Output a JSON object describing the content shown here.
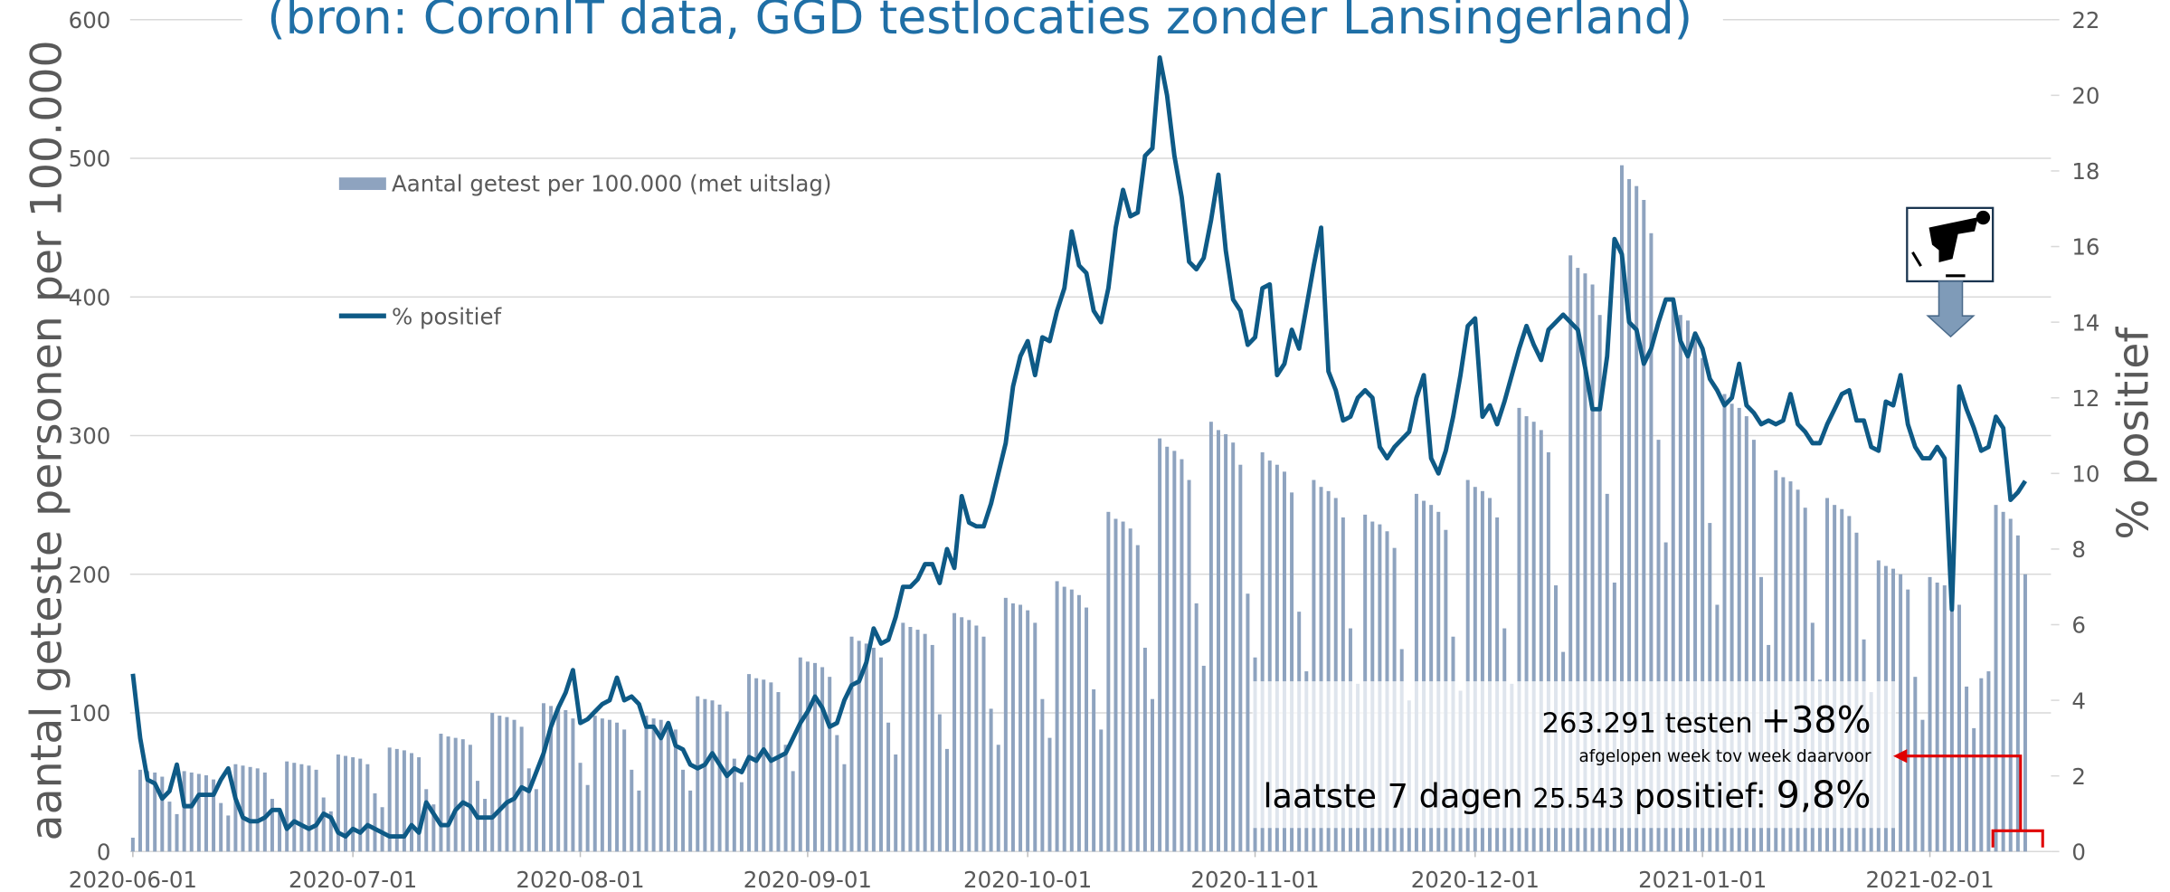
{
  "chart_data": {
    "type": "bar-line",
    "title": "(bron: CoronIT data, GGD testlocaties zonder Lansingerland)",
    "ylabel": "aantal geteste personen per 100.000",
    "y2label": "% positief",
    "legend": "upper left",
    "grid": true,
    "xlim": [
      "2020-06-01",
      "2021-02-16"
    ],
    "xticks": [
      "2020-06-01",
      "2020-07-01",
      "2020-08-01",
      "2020-09-01",
      "2020-10-01",
      "2020-11-01",
      "2020-12-01",
      "2021-01-01",
      "2021-02-01"
    ],
    "ylim": [
      0,
      600
    ],
    "yticks": [
      0,
      100,
      200,
      300,
      400,
      500,
      600
    ],
    "y2lim": [
      0,
      22
    ],
    "y2ticks": [
      0,
      2,
      4,
      6,
      8,
      10,
      12,
      14,
      16,
      18,
      20,
      22
    ],
    "x": [
      "2020-06-01",
      "2020-06-02",
      "2020-06-03",
      "2020-06-04",
      "2020-06-05",
      "2020-06-06",
      "2020-06-07",
      "2020-06-08",
      "2020-06-09",
      "2020-06-10",
      "2020-06-11",
      "2020-06-12",
      "2020-06-13",
      "2020-06-14",
      "2020-06-15",
      "2020-06-16",
      "2020-06-17",
      "2020-06-18",
      "2020-06-19",
      "2020-06-20",
      "2020-06-21",
      "2020-06-22",
      "2020-06-23",
      "2020-06-24",
      "2020-06-25",
      "2020-06-26",
      "2020-06-27",
      "2020-06-28",
      "2020-06-29",
      "2020-06-30",
      "2020-07-01",
      "2020-07-02",
      "2020-07-03",
      "2020-07-04",
      "2020-07-05",
      "2020-07-06",
      "2020-07-07",
      "2020-07-08",
      "2020-07-09",
      "2020-07-10",
      "2020-07-11",
      "2020-07-12",
      "2020-07-13",
      "2020-07-14",
      "2020-07-15",
      "2020-07-16",
      "2020-07-17",
      "2020-07-18",
      "2020-07-19",
      "2020-07-20",
      "2020-07-21",
      "2020-07-22",
      "2020-07-23",
      "2020-07-24",
      "2020-07-25",
      "2020-07-26",
      "2020-07-27",
      "2020-07-28",
      "2020-07-29",
      "2020-07-30",
      "2020-07-31",
      "2020-08-01",
      "2020-08-02",
      "2020-08-03",
      "2020-08-04",
      "2020-08-05",
      "2020-08-06",
      "2020-08-07",
      "2020-08-08",
      "2020-08-09",
      "2020-08-10",
      "2020-08-11",
      "2020-08-12",
      "2020-08-13",
      "2020-08-14",
      "2020-08-15",
      "2020-08-16",
      "2020-08-17",
      "2020-08-18",
      "2020-08-19",
      "2020-08-20",
      "2020-08-21",
      "2020-08-22",
      "2020-08-23",
      "2020-08-24",
      "2020-08-25",
      "2020-08-26",
      "2020-08-27",
      "2020-08-28",
      "2020-08-29",
      "2020-08-30",
      "2020-08-31",
      "2020-09-01",
      "2020-09-02",
      "2020-09-03",
      "2020-09-04",
      "2020-09-05",
      "2020-09-06",
      "2020-09-07",
      "2020-09-08",
      "2020-09-09",
      "2020-09-10",
      "2020-09-11",
      "2020-09-12",
      "2020-09-13",
      "2020-09-14",
      "2020-09-15",
      "2020-09-16",
      "2020-09-17",
      "2020-09-18",
      "2020-09-19",
      "2020-09-20",
      "2020-09-21",
      "2020-09-22",
      "2020-09-23",
      "2020-09-24",
      "2020-09-25",
      "2020-09-26",
      "2020-09-27",
      "2020-09-28",
      "2020-09-29",
      "2020-09-30",
      "2020-10-01",
      "2020-10-02",
      "2020-10-03",
      "2020-10-04",
      "2020-10-05",
      "2020-10-06",
      "2020-10-07",
      "2020-10-08",
      "2020-10-09",
      "2020-10-10",
      "2020-10-11",
      "2020-10-12",
      "2020-10-13",
      "2020-10-14",
      "2020-10-15",
      "2020-10-16",
      "2020-10-17",
      "2020-10-18",
      "2020-10-19",
      "2020-10-20",
      "2020-10-21",
      "2020-10-22",
      "2020-10-23",
      "2020-10-24",
      "2020-10-25",
      "2020-10-26",
      "2020-10-27",
      "2020-10-28",
      "2020-10-29",
      "2020-10-30",
      "2020-10-31",
      "2020-11-01",
      "2020-11-02",
      "2020-11-03",
      "2020-11-04",
      "2020-11-05",
      "2020-11-06",
      "2020-11-07",
      "2020-11-08",
      "2020-11-09",
      "2020-11-10",
      "2020-11-11",
      "2020-11-12",
      "2020-11-13",
      "2020-11-14",
      "2020-11-15",
      "2020-11-16",
      "2020-11-17",
      "2020-11-18",
      "2020-11-19",
      "2020-11-20",
      "2020-11-21",
      "2020-11-22",
      "2020-11-23",
      "2020-11-24",
      "2020-11-25",
      "2020-11-26",
      "2020-11-27",
      "2020-11-28",
      "2020-11-29",
      "2020-11-30",
      "2020-12-01",
      "2020-12-02",
      "2020-12-03",
      "2020-12-04",
      "2020-12-05",
      "2020-12-06",
      "2020-12-07",
      "2020-12-08",
      "2020-12-09",
      "2020-12-10",
      "2020-12-11",
      "2020-12-12",
      "2020-12-13",
      "2020-12-14",
      "2020-12-15",
      "2020-12-16",
      "2020-12-17",
      "2020-12-18",
      "2020-12-19",
      "2020-12-20",
      "2020-12-21",
      "2020-12-22",
      "2020-12-23",
      "2020-12-24",
      "2020-12-25",
      "2020-12-26",
      "2020-12-27",
      "2020-12-28",
      "2020-12-29",
      "2020-12-30",
      "2020-12-31",
      "2021-01-01",
      "2021-01-02",
      "2021-01-03",
      "2021-01-04",
      "2021-01-05",
      "2021-01-06",
      "2021-01-07",
      "2021-01-08",
      "2021-01-09",
      "2021-01-10",
      "2021-01-11",
      "2021-01-12",
      "2021-01-13",
      "2021-01-14",
      "2021-01-15",
      "2021-01-16",
      "2021-01-17",
      "2021-01-18",
      "2021-01-19",
      "2021-01-20",
      "2021-01-21",
      "2021-01-22",
      "2021-01-23",
      "2021-01-24",
      "2021-01-25",
      "2021-01-26",
      "2021-01-27",
      "2021-01-28",
      "2021-01-29",
      "2021-01-30",
      "2021-01-31",
      "2021-02-01",
      "2021-02-02",
      "2021-02-03",
      "2021-02-04",
      "2021-02-05",
      "2021-02-06",
      "2021-02-07",
      "2021-02-08",
      "2021-02-09",
      "2021-02-10",
      "2021-02-11",
      "2021-02-12",
      "2021-02-13",
      "2021-02-14"
    ],
    "series": [
      {
        "name": "Aantal getest per 100.000 (met uitslag)",
        "type": "bar",
        "axis": "y",
        "color": "#8ea3bf",
        "values": [
          10,
          59,
          58,
          57,
          54,
          36,
          27,
          58,
          57,
          56,
          55,
          52,
          35,
          26,
          63,
          62,
          61,
          60,
          57,
          38,
          28,
          65,
          64,
          63,
          62,
          59,
          39,
          29,
          70,
          69,
          68,
          67,
          63,
          42,
          32,
          75,
          74,
          73,
          71,
          68,
          45,
          34,
          85,
          83,
          82,
          81,
          77,
          51,
          38,
          100,
          98,
          97,
          95,
          90,
          60,
          45,
          107,
          105,
          104,
          102,
          96,
          64,
          48,
          98,
          96,
          95,
          93,
          88,
          59,
          44,
          98,
          96,
          95,
          93,
          88,
          59,
          44,
          112,
          110,
          109,
          106,
          101,
          67,
          50,
          128,
          125,
          124,
          122,
          115,
          77,
          58,
          140,
          137,
          136,
          133,
          126,
          84,
          63,
          155,
          152,
          150,
          147,
          140,
          93,
          70,
          165,
          162,
          160,
          157,
          149,
          99,
          74,
          172,
          169,
          167,
          163,
          155,
          103,
          77,
          183,
          179,
          178,
          174,
          165,
          110,
          82,
          195,
          191,
          189,
          185,
          176,
          117,
          88,
          245,
          240,
          238,
          233,
          221,
          147,
          110,
          298,
          292,
          289,
          283,
          268,
          179,
          134,
          310,
          304,
          301,
          295,
          279,
          186,
          140,
          288,
          282,
          279,
          274,
          259,
          173,
          130,
          268,
          263,
          260,
          255,
          241,
          161,
          121,
          243,
          238,
          236,
          231,
          219,
          146,
          109,
          258,
          253,
          250,
          245,
          232,
          155,
          116,
          268,
          263,
          260,
          255,
          241,
          161,
          121,
          320,
          314,
          310,
          304,
          288,
          192,
          144,
          430,
          421,
          417,
          409,
          387,
          258,
          194,
          495,
          485,
          480,
          470,
          446,
          297,
          223,
          395,
          387,
          383,
          375,
          356,
          237,
          178,
          330,
          323,
          320,
          314,
          297,
          198,
          149,
          275,
          270,
          267,
          261,
          248,
          165,
          124,
          255,
          250,
          247,
          242,
          230,
          153,
          115,
          210,
          206,
          204,
          200,
          189,
          126,
          95,
          198,
          194,
          192,
          188,
          178,
          119,
          89,
          125,
          130,
          250,
          245,
          240,
          228,
          200
        ]
      },
      {
        "name": "% positief",
        "type": "line",
        "axis": "y2",
        "color": "#0e5a86",
        "values": [
          4.7,
          3.0,
          1.9,
          1.8,
          1.4,
          1.6,
          2.3,
          1.2,
          1.2,
          1.5,
          1.5,
          1.5,
          1.9,
          2.2,
          1.4,
          0.9,
          0.8,
          0.8,
          0.9,
          1.1,
          1.1,
          0.6,
          0.8,
          0.7,
          0.6,
          0.7,
          1.0,
          0.9,
          0.5,
          0.4,
          0.6,
          0.5,
          0.7,
          0.6,
          0.5,
          0.4,
          0.4,
          0.4,
          0.7,
          0.5,
          1.3,
          1.0,
          0.7,
          0.7,
          1.1,
          1.3,
          1.2,
          0.9,
          0.9,
          0.9,
          1.1,
          1.3,
          1.4,
          1.7,
          1.6,
          2.1,
          2.6,
          3.3,
          3.8,
          4.2,
          4.8,
          3.4,
          3.5,
          3.7,
          3.9,
          4.0,
          4.6,
          4.0,
          4.1,
          3.9,
          3.3,
          3.3,
          3.0,
          3.4,
          2.8,
          2.7,
          2.3,
          2.2,
          2.3,
          2.6,
          2.3,
          2.0,
          2.2,
          2.1,
          2.5,
          2.4,
          2.7,
          2.4,
          2.5,
          2.6,
          3.0,
          3.4,
          3.7,
          4.1,
          3.8,
          3.3,
          3.4,
          4.0,
          4.4,
          4.5,
          5.0,
          5.9,
          5.5,
          5.6,
          6.2,
          7.0,
          7.0,
          7.2,
          7.6,
          7.6,
          7.1,
          8.0,
          7.5,
          9.4,
          8.7,
          8.6,
          8.6,
          9.2,
          10.0,
          10.8,
          12.3,
          13.1,
          13.5,
          12.6,
          13.6,
          13.5,
          14.3,
          14.9,
          16.4,
          15.5,
          15.3,
          14.3,
          14.0,
          14.9,
          16.5,
          17.5,
          16.8,
          16.9,
          18.4,
          18.6,
          21.0,
          20.0,
          18.4,
          17.3,
          15.6,
          15.4,
          15.7,
          16.7,
          17.9,
          15.9,
          14.6,
          14.3,
          13.4,
          13.6,
          14.9,
          15.0,
          12.6,
          12.9,
          13.8,
          13.3,
          14.4,
          15.5,
          16.5,
          12.7,
          12.2,
          11.4,
          11.5,
          12.0,
          12.2,
          12.0,
          10.7,
          10.4,
          10.7,
          10.9,
          11.1,
          12.0,
          12.6,
          10.4,
          10.0,
          10.6,
          11.5,
          12.6,
          13.9,
          14.1,
          11.5,
          11.8,
          11.3,
          11.9,
          12.6,
          13.3,
          13.9,
          13.4,
          13.0,
          13.8,
          14.0,
          14.2,
          14.0,
          13.8,
          12.8,
          11.7,
          11.7,
          13.1,
          16.2,
          15.8,
          14.0,
          13.8,
          12.9,
          13.3,
          14.0,
          14.6,
          14.6,
          13.5,
          13.1,
          13.7,
          13.3,
          12.5,
          12.2,
          11.8,
          12.0,
          12.9,
          11.8,
          11.6,
          11.3,
          11.4,
          11.3,
          11.4,
          12.1,
          11.3,
          11.1,
          10.8,
          10.8,
          11.3,
          11.7,
          12.1,
          12.2,
          11.4,
          11.4,
          10.7,
          10.6,
          11.9,
          11.8,
          12.6,
          11.3,
          10.7,
          10.4,
          10.4,
          10.7,
          10.4,
          6.4,
          12.3,
          11.7,
          11.2,
          10.6,
          10.7,
          11.5,
          11.2,
          9.3,
          9.5,
          9.8
        ]
      }
    ],
    "annotations": {
      "tests": "263.291 testen",
      "tests_change": "+38%",
      "note": "afgelopen week tov week daarvoor",
      "last7_label": "laatste 7 dagen",
      "positives": "25.543",
      "positives_label": "positief:",
      "pct": "9,8%"
    }
  }
}
